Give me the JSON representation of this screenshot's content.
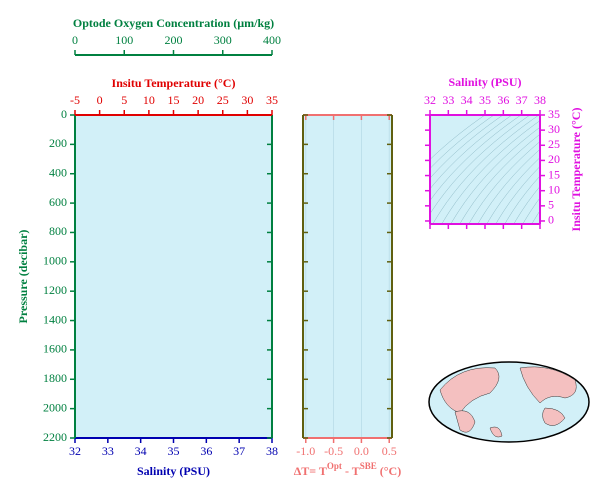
{
  "chart_data": [
    {
      "type": "profile",
      "background": "#d2f0f8",
      "xlabel": "Salinity (PSU)",
      "xcolor": "#0000b0",
      "xlim": [
        32,
        38
      ],
      "xticks": [
        32,
        33,
        34,
        35,
        36,
        37,
        38
      ],
      "ylabel": "Pressure (decibar)",
      "ycolor": "#008040",
      "y_inverted": true,
      "ylim": [
        0,
        2200
      ],
      "yticks": [
        0,
        200,
        400,
        600,
        800,
        1000,
        1200,
        1400,
        1600,
        1800,
        2000,
        2200
      ],
      "top_axes": [
        {
          "label": "Insitu Temperature (°C)",
          "color": "#e00000",
          "lim": [
            -5,
            35
          ],
          "ticks": [
            -5,
            0,
            5,
            10,
            15,
            20,
            25,
            30,
            35
          ]
        },
        {
          "label": "Optode Oxygen Concentration (µm/kg)",
          "color": "#008040",
          "lim": [
            0,
            400
          ],
          "ticks": [
            0,
            100,
            200,
            300,
            400
          ]
        }
      ]
    },
    {
      "type": "difference",
      "background": "#d2f0f8",
      "grid": true,
      "xlabel": [
        "ΔT= T",
        "Opt",
        " - T",
        "SBE",
        " (°C)"
      ],
      "xcolor": "#f07070",
      "xlim": [
        -1.05,
        0.55
      ],
      "xticks": [
        {
          "value": -1,
          "label": "-1.0"
        },
        -0.5,
        {
          "value": 0,
          "label": "0.0"
        },
        0.5
      ]
    },
    {
      "type": "ts-diagram",
      "background": "#d2f0f8",
      "xlabel": "Salinity (PSU)",
      "xlim": [
        32,
        38
      ],
      "xticks": [
        32,
        33,
        34,
        35,
        36,
        37,
        38
      ],
      "ylabel": "Insitu Temperature (°C)",
      "ylim": [
        -1,
        35
      ],
      "yticks": [
        0,
        5,
        10,
        15,
        20,
        25,
        30,
        35
      ],
      "color": "#e010e0"
    }
  ]
}
